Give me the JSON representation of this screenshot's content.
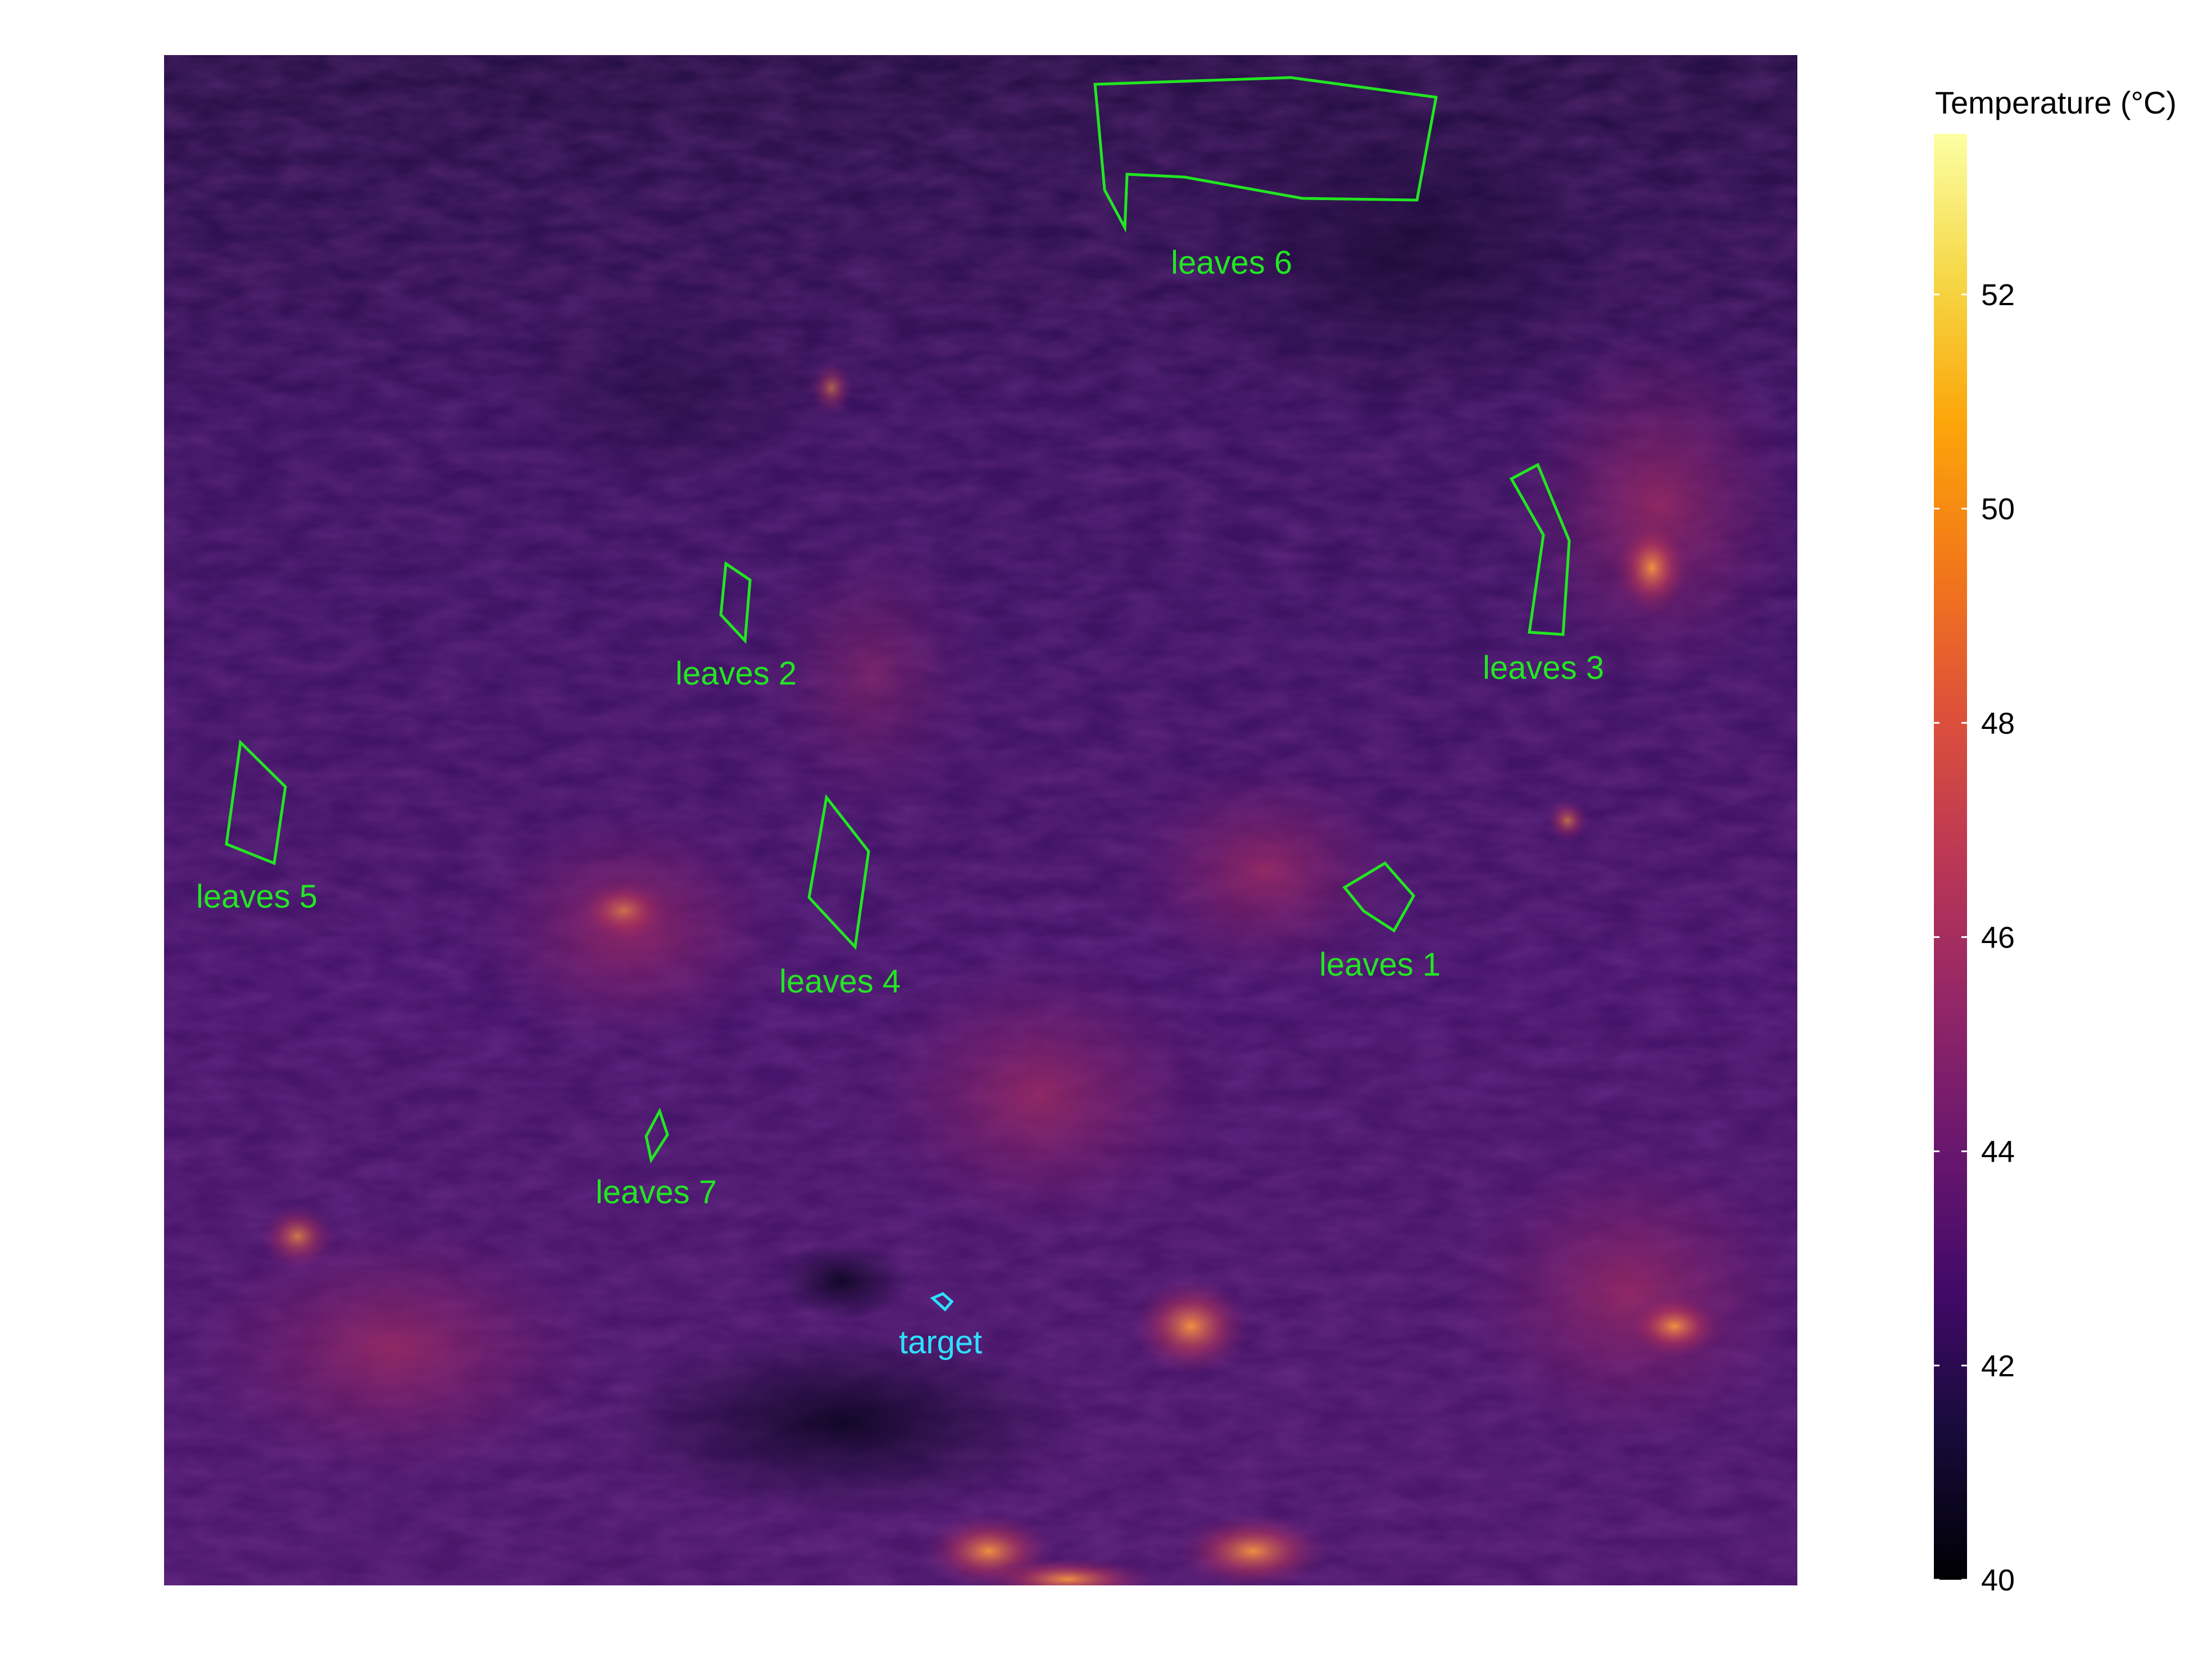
{
  "thermal_image": {
    "colormap": "inferno",
    "regions": [
      {
        "id": "leaves1",
        "label": "leaves 1",
        "color": "#22e622"
      },
      {
        "id": "leaves2",
        "label": "leaves 2",
        "color": "#22e622"
      },
      {
        "id": "leaves3",
        "label": "leaves 3",
        "color": "#22e622"
      },
      {
        "id": "leaves4",
        "label": "leaves 4",
        "color": "#22e622"
      },
      {
        "id": "leaves5",
        "label": "leaves 5",
        "color": "#22e622"
      },
      {
        "id": "leaves6",
        "label": "leaves 6",
        "color": "#22e622"
      },
      {
        "id": "leaves7",
        "label": "leaves 7",
        "color": "#22e622"
      },
      {
        "id": "target",
        "label": "target",
        "color": "#2ee0ff"
      }
    ]
  },
  "colorbar": {
    "title": "Temperature (°C)",
    "min": 40,
    "max": 53.5,
    "ticks": [
      "40",
      "42",
      "44",
      "46",
      "48",
      "50",
      "52"
    ]
  }
}
